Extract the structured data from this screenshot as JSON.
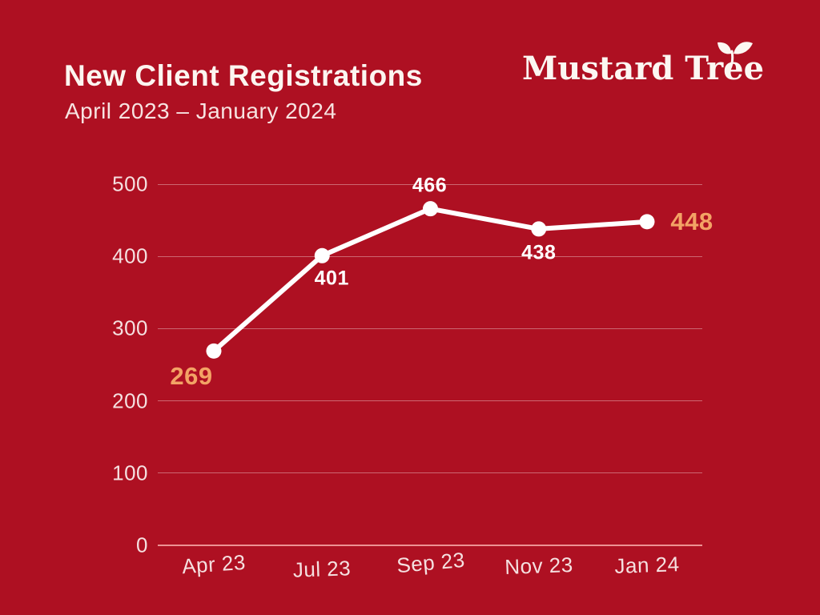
{
  "header": {
    "title": "New Client Registrations",
    "subtitle": "April 2023 – January 2024"
  },
  "logo": {
    "text": "Mustard Tree",
    "leaf_icon": "leaf-sprig"
  },
  "colors": {
    "background": "#AE1022",
    "title_text": "#FCF5F0",
    "subtitle_text": "#F7E3E1",
    "tick_text": "#F5E0E0",
    "gridline": "#F2D3D3",
    "axis_line": "#F09A9A",
    "line": "#FFFFFF",
    "point": "#FFFFFF",
    "label_white": "#FFFFFF",
    "label_highlight": "#F3A365"
  },
  "chart_data": {
    "type": "line",
    "title": "New Client Registrations",
    "subtitle": "April 2023 – January 2024",
    "categories": [
      "Apr 23",
      "Jul 23",
      "Sep 23",
      "Nov 23",
      "Jan 24"
    ],
    "values": [
      269,
      401,
      466,
      438,
      448
    ],
    "series": [
      {
        "name": "New client registrations",
        "values": [
          269,
          401,
          466,
          438,
          448
        ]
      }
    ],
    "data_labels": [
      "269",
      "401",
      "466",
      "438",
      "448"
    ],
    "highlighted_indices": [
      0,
      4
    ],
    "ylim": [
      0,
      500
    ],
    "yticks": [
      0,
      100,
      200,
      300,
      400,
      500
    ],
    "xlabel": "",
    "ylabel": "",
    "grid": true,
    "legend": "none",
    "line_color": "#FFFFFF",
    "point_color": "#FFFFFF",
    "label_color": "#FFFFFF",
    "label_highlight_color": "#F3A365"
  }
}
